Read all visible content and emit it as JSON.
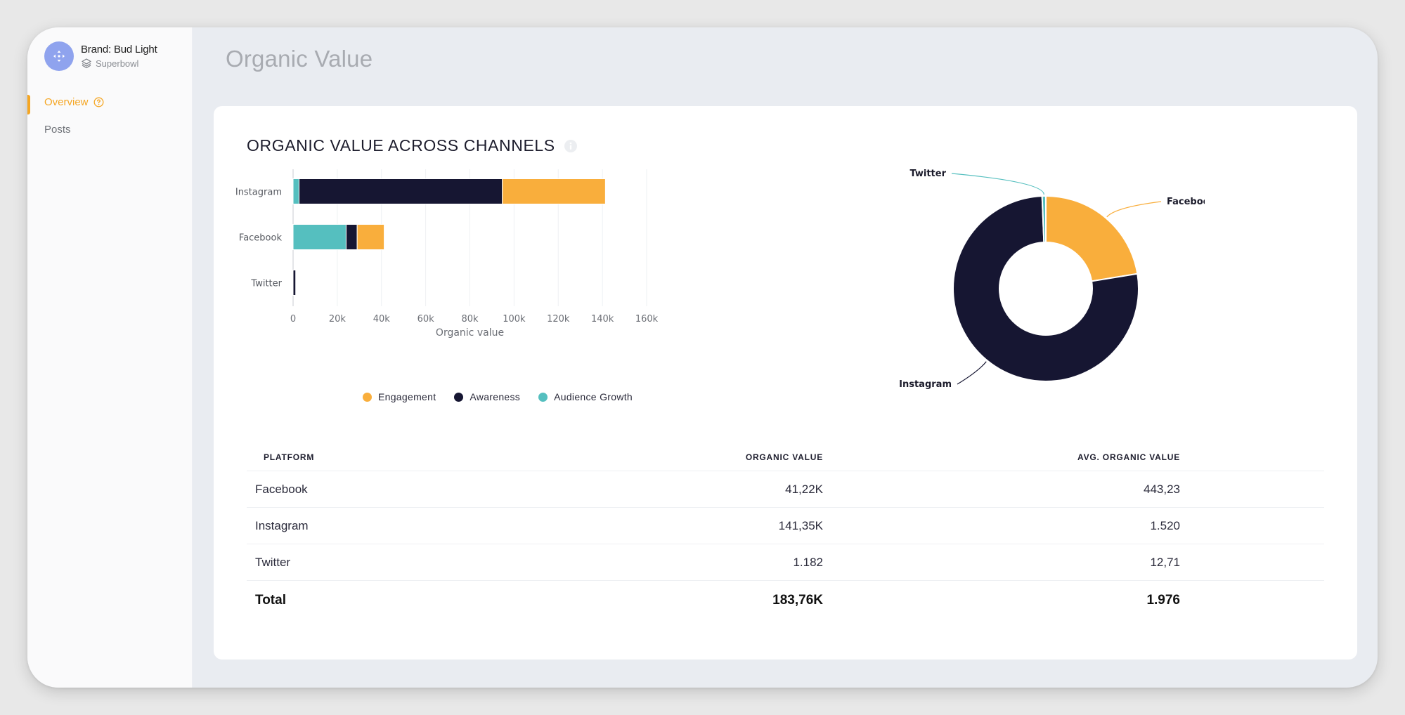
{
  "sidebar": {
    "brand": {
      "name": "Brand: Bud Light",
      "subtitle": "Superbowl"
    },
    "items": [
      {
        "label": "Overview",
        "active": true
      },
      {
        "label": "Posts",
        "active": false
      }
    ]
  },
  "header": {
    "title": "Organic Value"
  },
  "card": {
    "title": "ORGANIC VALUE ACROSS CHANNELS"
  },
  "colors": {
    "engagement": "#f9ae3c",
    "awareness": "#161632",
    "audience_growth": "#55bfbf",
    "accent": "#f5a623"
  },
  "chart_data": [
    {
      "type": "bar",
      "orientation": "horizontal",
      "stacked": true,
      "categories": [
        "Instagram",
        "Facebook",
        "Twitter"
      ],
      "series": [
        {
          "name": "Audience Growth",
          "color": "#55bfbf",
          "values": [
            2700,
            24000,
            0
          ]
        },
        {
          "name": "Awareness",
          "color": "#161632",
          "values": [
            92000,
            5000,
            1182
          ]
        },
        {
          "name": "Engagement",
          "color": "#f9ae3c",
          "values": [
            46650,
            12220,
            0
          ]
        }
      ],
      "xlabel": "Organic value",
      "xlim": [
        0,
        160000
      ],
      "xticks": [
        "0",
        "20k",
        "40k",
        "60k",
        "80k",
        "100k",
        "120k",
        "140k",
        "160k"
      ],
      "grid": true,
      "legend": "bottom"
    },
    {
      "type": "pie",
      "donut": true,
      "slices": [
        {
          "label": "Facebook",
          "value": 41220,
          "color": "#f9ae3c"
        },
        {
          "label": "Instagram",
          "value": 141350,
          "color": "#161632"
        },
        {
          "label": "Twitter",
          "value": 1182,
          "color": "#55bfbf"
        }
      ]
    }
  ],
  "table": {
    "headers": [
      "PLATFORM",
      "ORGANIC VALUE",
      "AVG. ORGANIC VALUE"
    ],
    "rows": [
      [
        "Facebook",
        "41,22K",
        "443,23"
      ],
      [
        "Instagram",
        "141,35K",
        "1.520"
      ],
      [
        "Twitter",
        "1.182",
        "12,71"
      ]
    ],
    "total": [
      "Total",
      "183,76K",
      "1.976"
    ]
  }
}
